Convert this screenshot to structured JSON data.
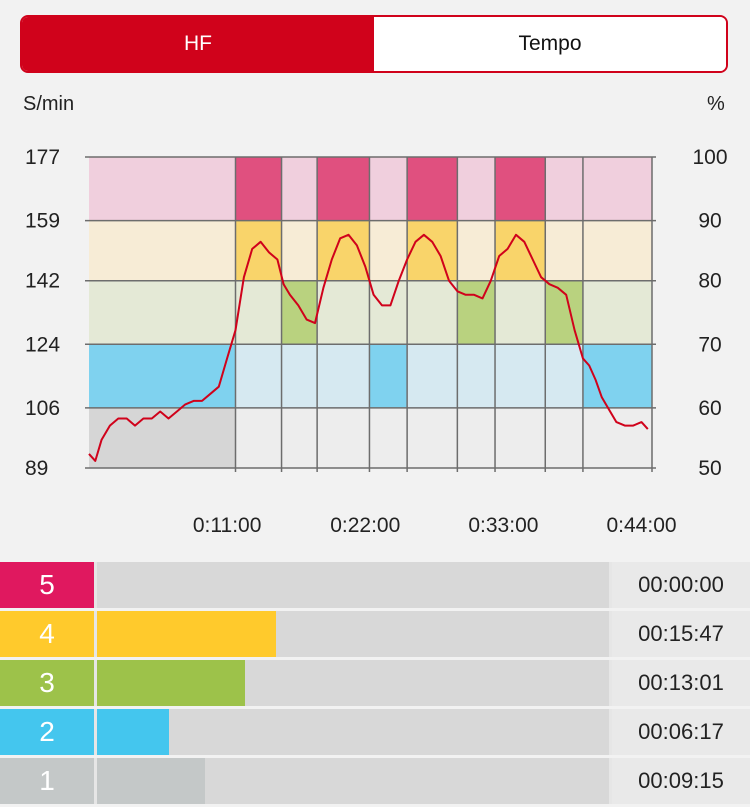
{
  "tabs": [
    {
      "label": "HF",
      "active": true
    },
    {
      "label": "Tempo",
      "active": false
    }
  ],
  "accent_color": "#d0021b",
  "chart_data": {
    "type": "line",
    "y_left_label": "S/min",
    "y_right_label": "%",
    "y_left_ticks": [
      "177",
      "159",
      "142",
      "124",
      "106",
      "89"
    ],
    "y_right_ticks": [
      "100",
      "90",
      "80",
      "70",
      "60",
      "50"
    ],
    "x_ticks": [
      "0:11:00",
      "0:22:00",
      "0:33:00",
      "0:44:00"
    ],
    "ylim": [
      89,
      177
    ],
    "zones": [
      {
        "zone": 5,
        "from": 159,
        "to": 177,
        "color": "#e0507f",
        "light": "#f0cfdd"
      },
      {
        "zone": 4,
        "from": 142,
        "to": 159,
        "color": "#f9d46a",
        "light": "#f7ecd6"
      },
      {
        "zone": 3,
        "from": 124,
        "to": 142,
        "color": "#b9d27f",
        "light": "#e4e9d6"
      },
      {
        "zone": 2,
        "from": 106,
        "to": 124,
        "color": "#7fd2ef",
        "light": "#d6e9f1"
      },
      {
        "zone": 1,
        "from": 89,
        "to": 106,
        "color": "#d6d6d6",
        "light": "#ededed"
      }
    ],
    "segments": [
      {
        "start": "0:00:00",
        "end": "0:11:40",
        "zone": 2
      },
      {
        "start": "0:11:40",
        "end": "0:15:20",
        "zone": 4
      },
      {
        "start": "0:15:20",
        "end": "0:18:10",
        "zone": 3
      },
      {
        "start": "0:18:10",
        "end": "0:22:20",
        "zone": 4
      },
      {
        "start": "0:22:20",
        "end": "0:25:20",
        "zone": 2
      },
      {
        "start": "0:25:20",
        "end": "0:29:20",
        "zone": 4
      },
      {
        "start": "0:29:20",
        "end": "0:32:20",
        "zone": 3
      },
      {
        "start": "0:32:20",
        "end": "0:36:20",
        "zone": 4
      },
      {
        "start": "0:36:20",
        "end": "0:39:20",
        "zone": 3
      },
      {
        "start": "0:39:20",
        "end": "0:44:50",
        "zone": 2
      }
    ],
    "series": [
      {
        "color": "#d0021b",
        "points": [
          [
            "0:00:00",
            93
          ],
          [
            "0:00:30",
            91
          ],
          [
            "0:01:00",
            97
          ],
          [
            "0:01:40",
            101
          ],
          [
            "0:02:20",
            103
          ],
          [
            "0:03:00",
            103
          ],
          [
            "0:03:40",
            101
          ],
          [
            "0:04:20",
            103
          ],
          [
            "0:05:00",
            103
          ],
          [
            "0:05:40",
            105
          ],
          [
            "0:06:20",
            103
          ],
          [
            "0:07:00",
            105
          ],
          [
            "0:07:40",
            107
          ],
          [
            "0:08:20",
            108
          ],
          [
            "0:09:00",
            108
          ],
          [
            "0:09:40",
            110
          ],
          [
            "0:10:20",
            112
          ],
          [
            "0:11:00",
            120
          ],
          [
            "0:11:40",
            128
          ],
          [
            "0:12:20",
            143
          ],
          [
            "0:13:00",
            151
          ],
          [
            "0:13:40",
            153
          ],
          [
            "0:14:20",
            150
          ],
          [
            "0:15:00",
            148
          ],
          [
            "0:15:30",
            141
          ],
          [
            "0:16:00",
            138
          ],
          [
            "0:16:40",
            135
          ],
          [
            "0:17:20",
            131
          ],
          [
            "0:18:00",
            130
          ],
          [
            "0:18:40",
            140
          ],
          [
            "0:19:20",
            148
          ],
          [
            "0:20:00",
            154
          ],
          [
            "0:20:40",
            155
          ],
          [
            "0:21:20",
            152
          ],
          [
            "0:22:00",
            146
          ],
          [
            "0:22:40",
            138
          ],
          [
            "0:23:20",
            135
          ],
          [
            "0:24:00",
            135
          ],
          [
            "0:24:40",
            142
          ],
          [
            "0:25:20",
            148
          ],
          [
            "0:26:00",
            153
          ],
          [
            "0:26:40",
            155
          ],
          [
            "0:27:20",
            153
          ],
          [
            "0:28:00",
            149
          ],
          [
            "0:28:40",
            142
          ],
          [
            "0:29:20",
            139
          ],
          [
            "0:30:00",
            138
          ],
          [
            "0:30:40",
            138
          ],
          [
            "0:31:20",
            137
          ],
          [
            "0:32:00",
            142
          ],
          [
            "0:32:40",
            149
          ],
          [
            "0:33:20",
            151
          ],
          [
            "0:34:00",
            155
          ],
          [
            "0:34:40",
            153
          ],
          [
            "0:35:20",
            148
          ],
          [
            "0:36:00",
            143
          ],
          [
            "0:36:40",
            141
          ],
          [
            "0:37:20",
            140
          ],
          [
            "0:38:00",
            138
          ],
          [
            "0:38:40",
            128
          ],
          [
            "0:39:20",
            120
          ],
          [
            "0:39:50",
            118
          ],
          [
            "0:40:20",
            114
          ],
          [
            "0:40:50",
            109
          ],
          [
            "0:41:20",
            106
          ],
          [
            "0:42:00",
            102
          ],
          [
            "0:42:40",
            101
          ],
          [
            "0:43:20",
            101
          ],
          [
            "0:44:00",
            102
          ],
          [
            "0:44:30",
            100
          ]
        ]
      }
    ]
  },
  "zone_rows": [
    {
      "zone": "5",
      "time": "00:00:00",
      "fraction": 0.0,
      "color": "#e0185f"
    },
    {
      "zone": "4",
      "time": "00:15:47",
      "fraction": 0.35,
      "color": "#ffca2c"
    },
    {
      "zone": "3",
      "time": "00:13:01",
      "fraction": 0.29,
      "color": "#9dc24a"
    },
    {
      "zone": "2",
      "time": "00:06:17",
      "fraction": 0.14,
      "color": "#44c6ee"
    },
    {
      "zone": "1",
      "time": "00:09:15",
      "fraction": 0.21,
      "color": "#c4c8c8"
    }
  ]
}
